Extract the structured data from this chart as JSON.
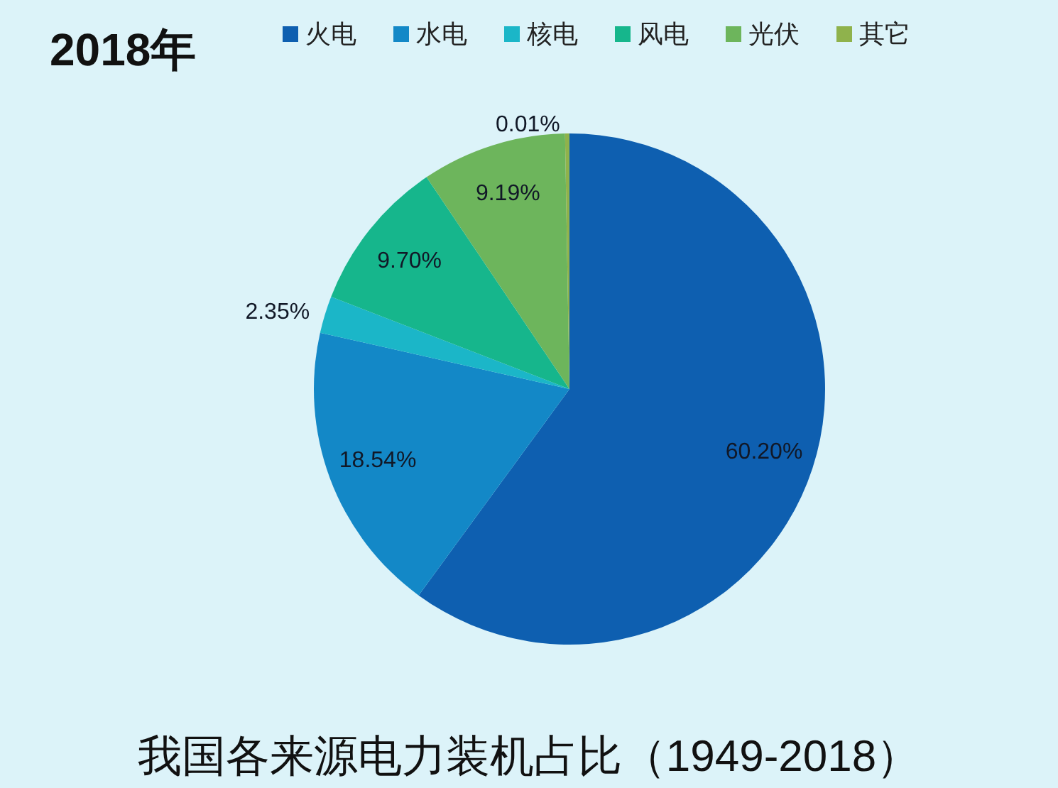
{
  "chart_data": {
    "type": "pie",
    "title": "2018年",
    "categories": [
      "火电",
      "水电",
      "核电",
      "风电",
      "光伏",
      "其它"
    ],
    "values": [
      60.2,
      18.54,
      2.35,
      9.7,
      9.19,
      0.01
    ],
    "colors": [
      "#0e5fb0",
      "#1388c7",
      "#1bb6c8",
      "#16b68c",
      "#6db55c",
      "#8fb24c"
    ],
    "value_labels": [
      "60.20%",
      "18.54%",
      "2.35%",
      "9.70%",
      "9.19%",
      "0.01%"
    ],
    "annotations": [
      "我国各来源电力装机占比（1949-2018）"
    ],
    "legend": "top"
  }
}
